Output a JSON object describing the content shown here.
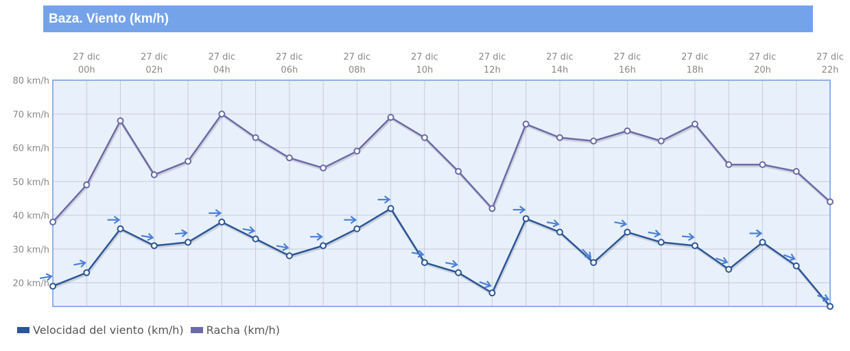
{
  "title": "Baza. Viento (km/h)",
  "chart_data": {
    "type": "line",
    "title": "Baza. Viento (km/h)",
    "x": [
      "26 dic 23h",
      "27 dic 00h",
      "27 dic 01h",
      "27 dic 02h",
      "27 dic 03h",
      "27 dic 04h",
      "27 dic 05h",
      "27 dic 06h",
      "27 dic 07h",
      "27 dic 08h",
      "27 dic 09h",
      "27 dic 10h",
      "27 dic 11h",
      "27 dic 12h",
      "27 dic 13h",
      "27 dic 14h",
      "27 dic 15h",
      "27 dic 16h",
      "27 dic 17h",
      "27 dic 18h",
      "27 dic 19h",
      "27 dic 20h",
      "27 dic 21h",
      "27 dic 22h"
    ],
    "x_ticks": [
      {
        "date": "27 dic",
        "hour": "00h"
      },
      {
        "date": "27 dic",
        "hour": "02h"
      },
      {
        "date": "27 dic",
        "hour": "04h"
      },
      {
        "date": "27 dic",
        "hour": "06h"
      },
      {
        "date": "27 dic",
        "hour": "08h"
      },
      {
        "date": "27 dic",
        "hour": "10h"
      },
      {
        "date": "27 dic",
        "hour": "12h"
      },
      {
        "date": "27 dic",
        "hour": "14h"
      },
      {
        "date": "27 dic",
        "hour": "16h"
      },
      {
        "date": "27 dic",
        "hour": "18h"
      },
      {
        "date": "27 dic",
        "hour": "20h"
      },
      {
        "date": "27 dic",
        "hour": "22h"
      }
    ],
    "y_ticks": [
      "20 km/h",
      "30 km/h",
      "40 km/h",
      "50 km/h",
      "60 km/h",
      "70 km/h",
      "80 km/h"
    ],
    "y_tick_values": [
      20,
      30,
      40,
      50,
      60,
      70,
      80
    ],
    "ylim": [
      13,
      80
    ],
    "grid": true,
    "legend_position": "bottom-left",
    "series": [
      {
        "name": "Velocidad del viento (km/h)",
        "color": "#2a5597",
        "values": [
          19,
          23,
          36,
          31,
          32,
          38,
          33,
          28,
          31,
          36,
          42,
          26,
          23,
          17,
          39,
          35,
          26,
          35,
          32,
          31,
          24,
          32,
          25,
          13
        ],
        "wind_arrow_direction_deg": [
          -10,
          -10,
          0,
          10,
          -5,
          0,
          10,
          10,
          0,
          0,
          0,
          10,
          10,
          20,
          0,
          10,
          45,
          10,
          10,
          5,
          20,
          0,
          20,
          20
        ]
      },
      {
        "name": "Racha (km/h)",
        "color": "#6b6aa8",
        "values": [
          38,
          49,
          68,
          52,
          56,
          70,
          63,
          57,
          54,
          59,
          69,
          63,
          53,
          42,
          67,
          63,
          62,
          65,
          62,
          67,
          55,
          55,
          53,
          44
        ]
      }
    ],
    "plot_background": "#e8f0fb",
    "arrow_color": "#4a7fd4"
  }
}
